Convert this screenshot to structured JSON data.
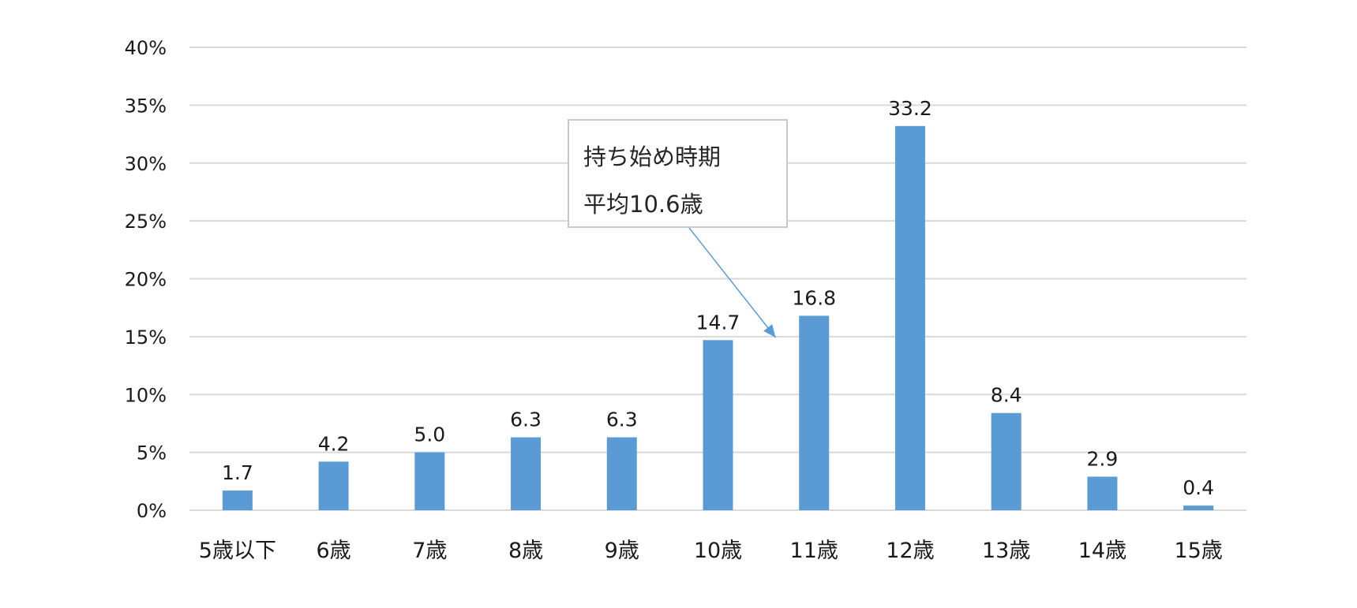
{
  "chart_data": {
    "type": "bar",
    "categories": [
      "5歳以下",
      "6歳",
      "7歳",
      "8歳",
      "9歳",
      "10歳",
      "11歳",
      "12歳",
      "13歳",
      "14歳",
      "15歳"
    ],
    "values": [
      1.7,
      4.2,
      5.0,
      6.3,
      6.3,
      14.7,
      16.8,
      33.2,
      8.4,
      2.9,
      0.4
    ],
    "data_labels": [
      "1.7",
      "4.2",
      "5.0",
      "6.3",
      "6.3",
      "14.7",
      "16.8",
      "33.2",
      "8.4",
      "2.9",
      "0.4"
    ],
    "y_ticks": [
      0,
      5,
      10,
      15,
      20,
      25,
      30,
      35,
      40
    ],
    "y_tick_labels": [
      "0%",
      "5%",
      "10%",
      "15%",
      "20%",
      "25%",
      "30%",
      "35%",
      "40%"
    ],
    "ylim": [
      0,
      40
    ],
    "grid": true,
    "bar_color": "#5b9bd5",
    "grid_color": "#d9d9d9",
    "annotation": {
      "line1": "持ち始め時期",
      "line2": "平均10.6歳",
      "arrow_color": "#5b9bd5",
      "points_to_x": 10.6
    }
  }
}
